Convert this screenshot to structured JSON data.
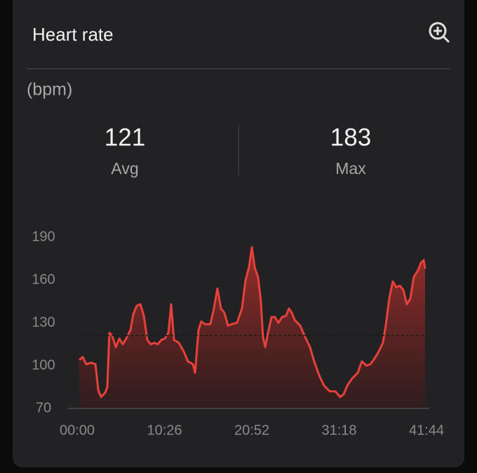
{
  "chart_data": {
    "type": "area",
    "title": "Heart rate",
    "y_label": "(bpm)",
    "stats": [
      {
        "value": 121,
        "label": "Avg"
      },
      {
        "value": 183,
        "label": "Max"
      }
    ],
    "color": "#e8403a",
    "x": [
      15,
      40,
      65,
      101,
      131,
      151,
      171,
      201,
      216,
      231,
      251,
      277,
      302,
      327,
      352,
      382,
      402,
      427,
      453,
      478,
      503,
      528,
      553,
      578,
      603,
      629,
      654,
      674,
      694,
      729,
      764,
      794,
      830,
      845,
      870,
      890,
      915,
      955,
      980,
      1005,
      1031,
      1056,
      1081,
      1106,
      1146,
      1181,
      1207,
      1232,
      1252,
      1272,
      1297,
      1317,
      1332,
      1348,
      1368,
      1393,
      1418,
      1443,
      1468,
      1498,
      1518,
      1539,
      1559,
      1599,
      1634,
      1669,
      1699,
      1735,
      1770,
      1810,
      1850,
      1886,
      1911,
      1936,
      1971,
      2011,
      2041,
      2072,
      2102,
      2132,
      2162,
      2192,
      2212,
      2237,
      2262,
      2288,
      2313,
      2338,
      2363,
      2388,
      2413,
      2444,
      2464,
      2484,
      2494
    ],
    "values": [
      104,
      106,
      101,
      102,
      101,
      83,
      78,
      81,
      85,
      123,
      121,
      113,
      119,
      115,
      119,
      125,
      136,
      142,
      143,
      135,
      118,
      115,
      116,
      115,
      118,
      119,
      123,
      143,
      118,
      116,
      110,
      103,
      101,
      95,
      125,
      131,
      129,
      129,
      140,
      154,
      140,
      137,
      128,
      129,
      130,
      140,
      160,
      169,
      183,
      169,
      162,
      145,
      120,
      113,
      123,
      134,
      134,
      130,
      134,
      135,
      140,
      137,
      132,
      128,
      120,
      113,
      103,
      93,
      86,
      82,
      82,
      78,
      80,
      86,
      91,
      95,
      103,
      100,
      101,
      105,
      110,
      116,
      128,
      147,
      159,
      155,
      156,
      153,
      143,
      147,
      162,
      167,
      172,
      174,
      168
    ],
    "xlim": [
      0,
      2504
    ],
    "ylim": [
      70,
      190
    ],
    "xticks": [
      {
        "value": 0,
        "label": "00:00"
      },
      {
        "value": 626,
        "label": "10:26"
      },
      {
        "value": 1252,
        "label": "20:52"
      },
      {
        "value": 1878,
        "label": "31:18"
      },
      {
        "value": 2504,
        "label": "41:44"
      }
    ],
    "yticks": [
      70,
      100,
      130,
      160,
      190
    ]
  }
}
